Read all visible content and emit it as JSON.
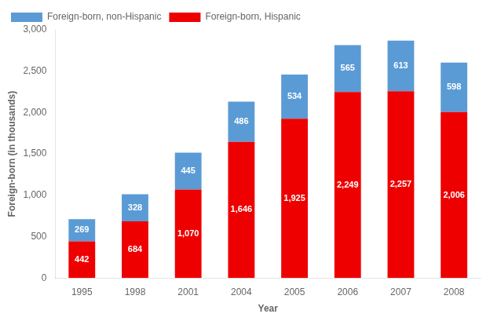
{
  "chart_data": {
    "type": "bar",
    "stacked": true,
    "categories": [
      "1995",
      "1998",
      "2001",
      "2004",
      "2005",
      "2006",
      "2007",
      "2008"
    ],
    "series": [
      {
        "name": "Foreign-born, Hispanic",
        "color": "#EE0000",
        "values": [
          442,
          684,
          1070,
          1646,
          1925,
          2249,
          2257,
          2006
        ],
        "value_labels": [
          "442",
          "684",
          "1,070",
          "1,646",
          "1,925",
          "2,249",
          "2,257",
          "2,006"
        ]
      },
      {
        "name": "Foreign-born, non-Hispanic",
        "color": "#5B9BD5",
        "values": [
          269,
          328,
          445,
          486,
          534,
          565,
          613,
          598
        ],
        "value_labels": [
          "269",
          "328",
          "445",
          "486",
          "534",
          "565",
          "613",
          "598"
        ]
      }
    ],
    "x_label": "Year",
    "y_label": "Foreign-born (in thousands)",
    "ylim": [
      0,
      3000
    ],
    "yticks": [
      0,
      500,
      {
        "value": 1000,
        "label": "1,000"
      },
      {
        "value": 1500,
        "label": "1,500"
      },
      {
        "value": 2000,
        "label": "2,000"
      },
      {
        "value": 2500,
        "label": "2,500"
      },
      {
        "value": 3000,
        "label": "3,000"
      }
    ],
    "grid": false,
    "legend": "upper left",
    "data_labels": true
  }
}
